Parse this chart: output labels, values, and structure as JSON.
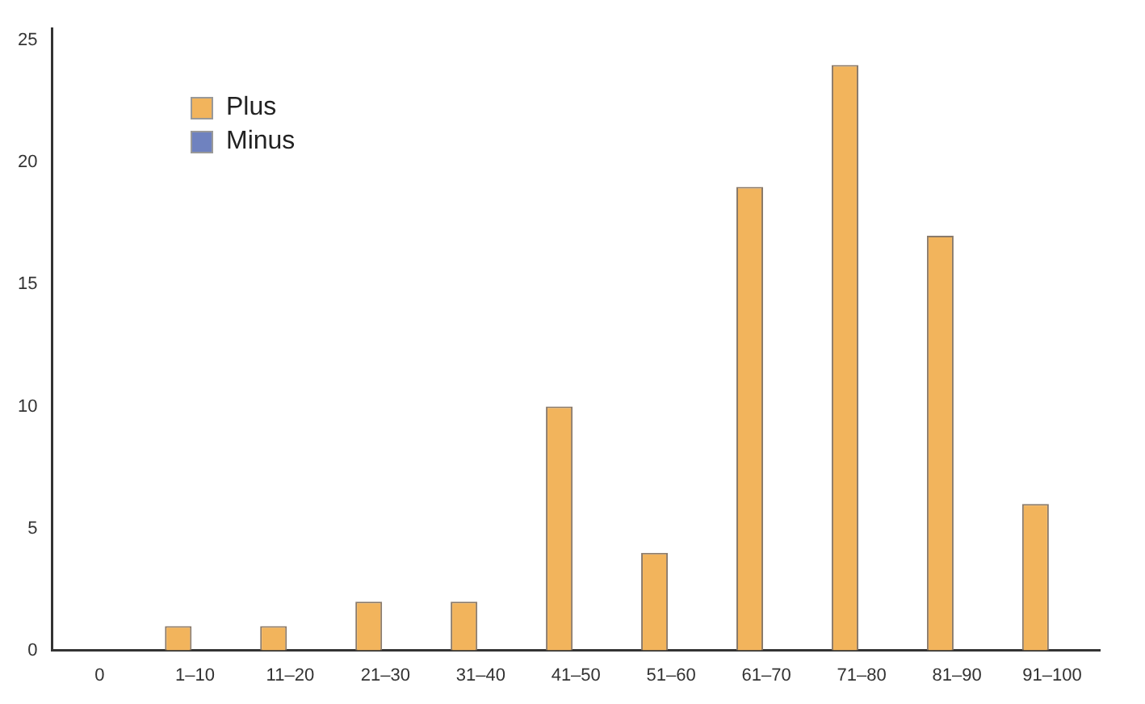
{
  "chart_data": {
    "type": "bar",
    "categories": [
      "0",
      "1–10",
      "11–20",
      "21–30",
      "31–40",
      "41–50",
      "51–60",
      "61–70",
      "71–80",
      "81–90",
      "91–100"
    ],
    "series": [
      {
        "name": "Plus",
        "color": "#f2b45c",
        "values": [
          0,
          1,
          1,
          2,
          2,
          10,
          4,
          19,
          24,
          17,
          6
        ]
      },
      {
        "name": "Minus",
        "color": "#6f82bf",
        "values": [
          0,
          0,
          0,
          0,
          0,
          0,
          0,
          0,
          0,
          0,
          0
        ]
      }
    ],
    "ylim": [
      0,
      25.5
    ],
    "yticks": [
      0,
      5,
      10,
      15,
      20,
      25
    ],
    "grid": false,
    "legend": "top left"
  }
}
